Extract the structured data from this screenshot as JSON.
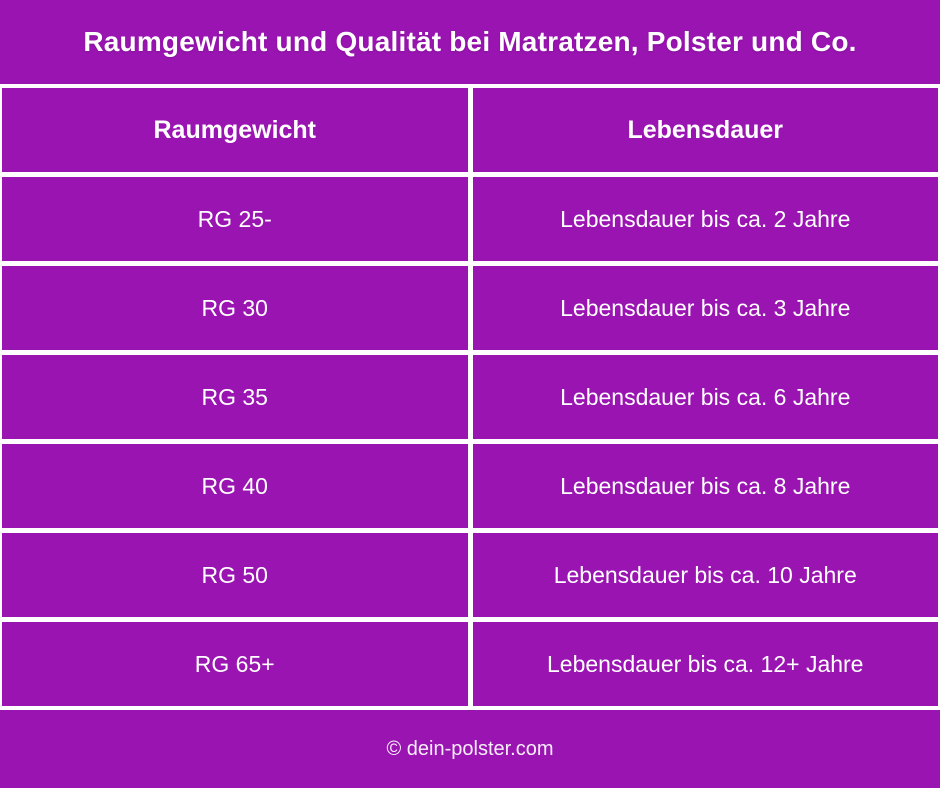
{
  "title": "Raumgewicht und Qualität bei Matratzen, Polster und Co.",
  "chart_data": {
    "type": "table",
    "title": "Raumgewicht und Qualität bei Matratzen, Polster und Co.",
    "columns": [
      "Raumgewicht",
      "Lebensdauer"
    ],
    "rows": [
      [
        "RG 25-",
        "Lebensdauer bis ca. 2 Jahre"
      ],
      [
        "RG 30",
        "Lebensdauer bis ca. 3 Jahre"
      ],
      [
        "RG 35",
        "Lebensdauer bis ca. 6 Jahre"
      ],
      [
        "RG 40",
        "Lebensdauer bis ca. 8 Jahre"
      ],
      [
        "RG 50",
        "Lebensdauer bis ca. 10 Jahre"
      ],
      [
        "RG 65+",
        "Lebensdauer bis ca. 12+ Jahre"
      ]
    ],
    "layout": {
      "grid": "white lines between purple cells",
      "legend": "none"
    }
  },
  "footer": {
    "credit": "© dein-polster.com"
  },
  "colors": {
    "purple": "#9A14B2",
    "grid_line": "#FFFFFF",
    "text": "#FFFFFF"
  }
}
